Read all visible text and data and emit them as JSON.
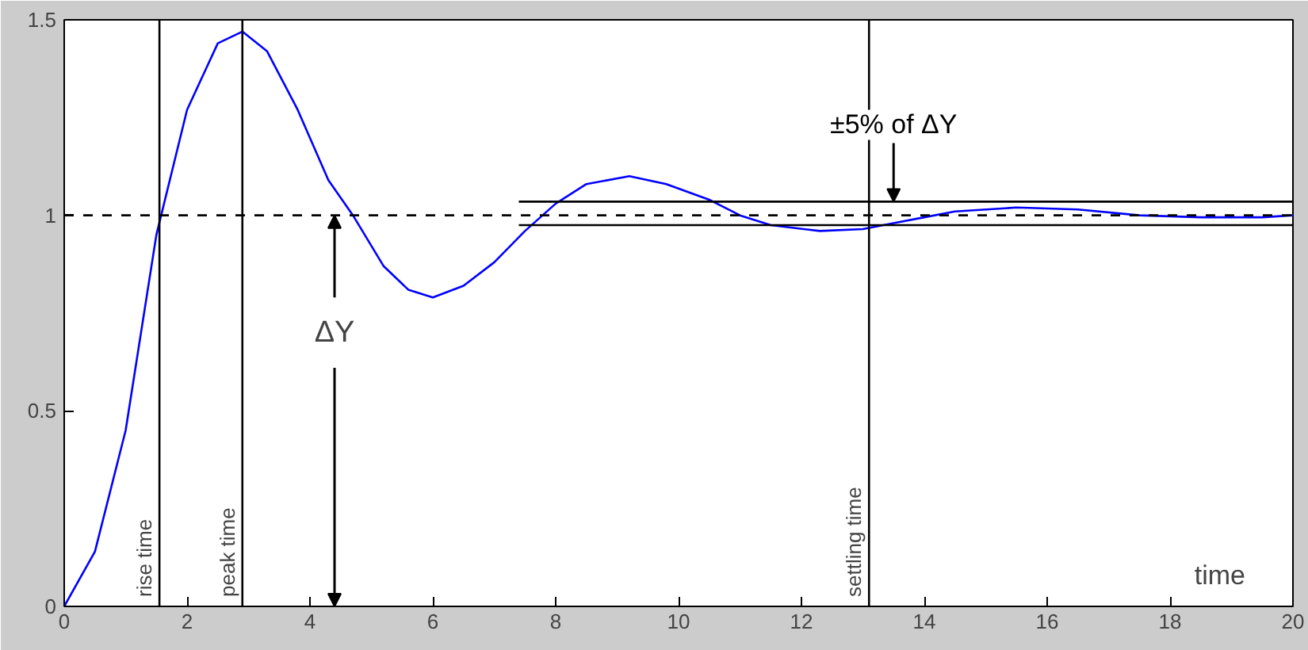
{
  "chart_data": {
    "type": "line",
    "xlabel": "time",
    "xlim": [
      0,
      20
    ],
    "xticks": [
      0,
      2,
      4,
      6,
      8,
      10,
      12,
      14,
      16,
      18,
      20
    ],
    "ylim": [
      0,
      1.5
    ],
    "yticks": [
      0,
      0.5,
      1,
      1.5
    ],
    "grid": false,
    "series": [
      {
        "color": "#0000ff",
        "x": [
          0,
          0.5,
          1,
          1.5,
          2,
          2.5,
          2.9,
          3.3,
          3.8,
          4.3,
          4.7,
          5.2,
          5.6,
          6,
          6.5,
          7,
          7.5,
          8,
          8.5,
          9.2,
          9.8,
          10.5,
          11,
          11.5,
          12.3,
          13,
          13.5,
          14,
          14.5,
          15.5,
          16.5,
          17.5,
          18.5,
          19.5,
          20
        ],
        "values": [
          0,
          0.14,
          0.45,
          0.95,
          1.27,
          1.44,
          1.47,
          1.42,
          1.27,
          1.09,
          1.0,
          0.87,
          0.81,
          0.79,
          0.82,
          0.88,
          0.96,
          1.03,
          1.08,
          1.1,
          1.08,
          1.04,
          1.0,
          0.975,
          0.96,
          0.965,
          0.98,
          0.995,
          1.01,
          1.02,
          1.015,
          1.0,
          0.995,
          0.995,
          1.0
        ]
      },
      {
        "color": "#000000",
        "x": [
          7.4,
          20
        ],
        "values": [
          1.035,
          1.035
        ]
      },
      {
        "color": "#000000",
        "x": [
          7.4,
          20
        ],
        "values": [
          0.975,
          0.975
        ]
      }
    ],
    "ref_lines": [
      {
        "axis": "y",
        "value": 1,
        "color": "#000000",
        "line_style": "dashed"
      },
      {
        "axis": "x",
        "value": 1.55,
        "label": "rise time",
        "color": "#000000"
      },
      {
        "axis": "x",
        "value": 2.9,
        "label": "peak time",
        "color": "#000000"
      },
      {
        "axis": "x",
        "value": 13.1,
        "label": "settling time",
        "color": "#000000"
      }
    ],
    "annotations": [
      {
        "text": "ΔY",
        "x": 4.4,
        "y": 1
      },
      {
        "text": "±5% of ΔY",
        "x": 13.5,
        "y": 1.035
      }
    ]
  }
}
